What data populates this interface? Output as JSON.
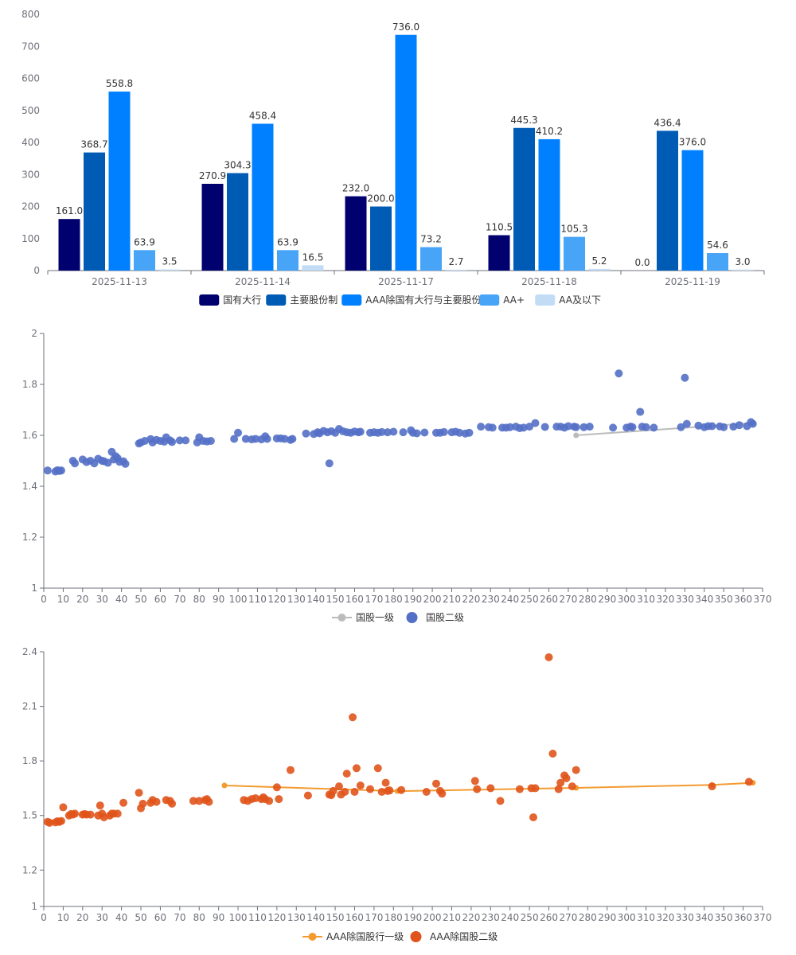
{
  "chart_data": [
    {
      "type": "bar",
      "categories": [
        "2025-11-13",
        "2025-11-14",
        "2025-11-17",
        "2025-11-18",
        "2025-11-19"
      ],
      "ylim": [
        0,
        800
      ],
      "yticks": [
        "0",
        "100",
        "200",
        "300",
        "400",
        "500",
        "600",
        "700",
        "800"
      ],
      "legend_position": "bottom-center",
      "series": [
        {
          "name": "国有大行",
          "color": "#00006e",
          "values": [
            161.0,
            270.9,
            232.0,
            110.5,
            0.0
          ],
          "labels": [
            "161.0",
            "270.9",
            "232.0",
            "110.5",
            "0.0"
          ]
        },
        {
          "name": "主要股份制",
          "color": "#005bb5",
          "values": [
            368.7,
            304.3,
            200.0,
            445.3,
            436.4
          ],
          "labels": [
            "368.7",
            "304.3",
            "200.0",
            "445.3",
            "436.4"
          ]
        },
        {
          "name": "AAA除国有大行与主要股份制",
          "color": "#0080ff",
          "values": [
            558.8,
            458.4,
            736.0,
            410.2,
            376.0
          ],
          "labels": [
            "558.8",
            "458.4",
            "736.0",
            "410.2",
            "376.0"
          ]
        },
        {
          "name": "AA+",
          "color": "#48a4f7",
          "values": [
            63.9,
            63.9,
            73.2,
            105.3,
            54.6
          ],
          "labels": [
            "63.9",
            "63.9",
            "73.2",
            "105.3",
            "54.6"
          ]
        },
        {
          "name": "AA及以下",
          "color": "#c3dcf5",
          "values": [
            3.5,
            16.5,
            2.7,
            5.2,
            3.0
          ],
          "labels": [
            "3.5",
            "16.5",
            "2.7",
            "5.2",
            "3.0"
          ]
        }
      ]
    },
    {
      "type": "scatter",
      "xlim": [
        0,
        370
      ],
      "ylim": [
        1,
        2
      ],
      "xticks": [
        "0",
        "10",
        "20",
        "30",
        "40",
        "50",
        "60",
        "70",
        "80",
        "90",
        "100",
        "110",
        "120",
        "130",
        "140",
        "150",
        "160",
        "170",
        "180",
        "190",
        "200",
        "210",
        "220",
        "230",
        "240",
        "250",
        "260",
        "270",
        "280",
        "290",
        "300",
        "310",
        "320",
        "330",
        "340",
        "350",
        "360",
        "370"
      ],
      "yticks": [
        "1",
        "1.2",
        "1.4",
        "1.6",
        "1.8",
        "2"
      ],
      "legend_position": "bottom-center",
      "series": [
        {
          "name": "国股一级",
          "kind": "line",
          "color": "#bbbbbb",
          "points": [
            [
              274,
              1.6
            ],
            [
              365,
              1.648
            ]
          ]
        },
        {
          "name": "国股二级",
          "kind": "scatter",
          "color": "#5470c6",
          "points": [
            [
              2,
              1.462
            ],
            [
              6,
              1.458
            ],
            [
              7,
              1.463
            ],
            [
              8,
              1.46
            ],
            [
              9,
              1.462
            ],
            [
              15,
              1.5
            ],
            [
              16,
              1.49
            ],
            [
              20,
              1.505
            ],
            [
              22,
              1.495
            ],
            [
              24,
              1.5
            ],
            [
              26,
              1.49
            ],
            [
              28,
              1.508
            ],
            [
              30,
              1.5
            ],
            [
              31,
              1.498
            ],
            [
              33,
              1.492
            ],
            [
              35,
              1.535
            ],
            [
              36,
              1.505
            ],
            [
              37,
              1.518
            ],
            [
              38,
              1.51
            ],
            [
              39,
              1.496
            ],
            [
              41,
              1.498
            ],
            [
              42,
              1.488
            ],
            [
              49,
              1.568
            ],
            [
              50,
              1.572
            ],
            [
              52,
              1.578
            ],
            [
              55,
              1.585
            ],
            [
              56,
              1.572
            ],
            [
              58,
              1.582
            ],
            [
              60,
              1.578
            ],
            [
              62,
              1.575
            ],
            [
              63,
              1.592
            ],
            [
              65,
              1.58
            ],
            [
              66,
              1.574
            ],
            [
              70,
              1.58
            ],
            [
              73,
              1.58
            ],
            [
              79,
              1.572
            ],
            [
              80,
              1.592
            ],
            [
              82,
              1.578
            ],
            [
              84,
              1.576
            ],
            [
              86,
              1.578
            ],
            [
              98,
              1.586
            ],
            [
              100,
              1.61
            ],
            [
              104,
              1.586
            ],
            [
              107,
              1.584
            ],
            [
              109,
              1.586
            ],
            [
              112,
              1.584
            ],
            [
              114,
              1.596
            ],
            [
              115,
              1.586
            ],
            [
              120,
              1.588
            ],
            [
              122,
              1.588
            ],
            [
              124,
              1.586
            ],
            [
              127,
              1.582
            ],
            [
              128,
              1.586
            ],
            [
              135,
              1.607
            ],
            [
              139,
              1.605
            ],
            [
              141,
              1.612
            ],
            [
              142,
              1.608
            ],
            [
              144,
              1.617
            ],
            [
              146,
              1.612
            ],
            [
              147,
              1.49
            ],
            [
              148,
              1.616
            ],
            [
              150,
              1.61
            ],
            [
              152,
              1.625
            ],
            [
              154,
              1.616
            ],
            [
              156,
              1.612
            ],
            [
              158,
              1.61
            ],
            [
              160,
              1.615
            ],
            [
              162,
              1.612
            ],
            [
              163,
              1.614
            ],
            [
              168,
              1.61
            ],
            [
              170,
              1.612
            ],
            [
              172,
              1.61
            ],
            [
              174,
              1.613
            ],
            [
              177,
              1.612
            ],
            [
              180,
              1.614
            ],
            [
              185,
              1.612
            ],
            [
              189,
              1.62
            ],
            [
              190,
              1.61
            ],
            [
              192,
              1.608
            ],
            [
              196,
              1.611
            ],
            [
              202,
              1.61
            ],
            [
              204,
              1.61
            ],
            [
              206,
              1.613
            ],
            [
              210,
              1.612
            ],
            [
              212,
              1.614
            ],
            [
              214,
              1.61
            ],
            [
              217,
              1.607
            ],
            [
              219,
              1.61
            ],
            [
              225,
              1.634
            ],
            [
              229,
              1.632
            ],
            [
              231,
              1.63
            ],
            [
              236,
              1.63
            ],
            [
              238,
              1.63
            ],
            [
              240,
              1.632
            ],
            [
              243,
              1.634
            ],
            [
              245,
              1.628
            ],
            [
              247,
              1.63
            ],
            [
              250,
              1.634
            ],
            [
              253,
              1.648
            ],
            [
              258,
              1.633
            ],
            [
              264,
              1.634
            ],
            [
              266,
              1.634
            ],
            [
              268,
              1.63
            ],
            [
              270,
              1.636
            ],
            [
              273,
              1.634
            ],
            [
              274,
              1.632
            ],
            [
              278,
              1.632
            ],
            [
              281,
              1.634
            ],
            [
              293,
              1.63
            ],
            [
              296,
              1.843
            ],
            [
              300,
              1.63
            ],
            [
              302,
              1.634
            ],
            [
              303,
              1.632
            ],
            [
              307,
              1.692
            ],
            [
              308,
              1.634
            ],
            [
              310,
              1.632
            ],
            [
              314,
              1.63
            ],
            [
              328,
              1.632
            ],
            [
              330,
              1.826
            ],
            [
              331,
              1.645
            ],
            [
              337,
              1.638
            ],
            [
              340,
              1.632
            ],
            [
              342,
              1.636
            ],
            [
              344,
              1.636
            ],
            [
              348,
              1.635
            ],
            [
              350,
              1.632
            ],
            [
              355,
              1.634
            ],
            [
              358,
              1.64
            ],
            [
              362,
              1.636
            ],
            [
              364,
              1.652
            ],
            [
              365,
              1.645
            ]
          ]
        }
      ]
    },
    {
      "type": "scatter",
      "xlim": [
        0,
        370
      ],
      "ylim": [
        1,
        2.4
      ],
      "xticks": [
        "0",
        "10",
        "20",
        "30",
        "40",
        "50",
        "60",
        "70",
        "80",
        "90",
        "100",
        "110",
        "120",
        "130",
        "140",
        "150",
        "160",
        "170",
        "180",
        "190",
        "200",
        "210",
        "220",
        "230",
        "240",
        "250",
        "260",
        "270",
        "280",
        "290",
        "300",
        "310",
        "320",
        "330",
        "340",
        "350",
        "360",
        "370"
      ],
      "yticks": [
        "1",
        "1.2",
        "1.5",
        "1.8",
        "2.1",
        "2.4"
      ],
      "legend_position": "bottom-center",
      "series": [
        {
          "name": "AAA除国股行一级",
          "kind": "line",
          "color": "#f39b30",
          "points": [
            [
              93,
              1.665
            ],
            [
              182,
              1.634
            ],
            [
              274,
              1.652
            ],
            [
              344,
              1.668
            ],
            [
              365,
              1.68
            ]
          ]
        },
        {
          "name": "AAA除国股二级",
          "kind": "scatter",
          "color": "#e0541b",
          "points": [
            [
              2,
              1.465
            ],
            [
              3,
              1.46
            ],
            [
              6,
              1.462
            ],
            [
              7,
              1.468
            ],
            [
              8,
              1.465
            ],
            [
              9,
              1.47
            ],
            [
              10,
              1.545
            ],
            [
              13,
              1.5
            ],
            [
              14,
              1.508
            ],
            [
              15,
              1.505
            ],
            [
              16,
              1.51
            ],
            [
              20,
              1.505
            ],
            [
              21,
              1.508
            ],
            [
              22,
              1.505
            ],
            [
              24,
              1.505
            ],
            [
              28,
              1.5
            ],
            [
              29,
              1.555
            ],
            [
              30,
              1.51
            ],
            [
              31,
              1.49
            ],
            [
              34,
              1.5
            ],
            [
              35,
              1.51
            ],
            [
              36,
              1.51
            ],
            [
              38,
              1.51
            ],
            [
              41,
              1.57
            ],
            [
              49,
              1.625
            ],
            [
              50,
              1.54
            ],
            [
              51,
              1.565
            ],
            [
              55,
              1.57
            ],
            [
              56,
              1.585
            ],
            [
              58,
              1.575
            ],
            [
              63,
              1.585
            ],
            [
              65,
              1.58
            ],
            [
              66,
              1.565
            ],
            [
              77,
              1.58
            ],
            [
              80,
              1.58
            ],
            [
              83,
              1.585
            ],
            [
              84,
              1.59
            ],
            [
              85,
              1.575
            ],
            [
              103,
              1.585
            ],
            [
              105,
              1.58
            ],
            [
              107,
              1.59
            ],
            [
              109,
              1.595
            ],
            [
              112,
              1.59
            ],
            [
              113,
              1.6
            ],
            [
              114,
              1.59
            ],
            [
              116,
              1.58
            ],
            [
              120,
              1.655
            ],
            [
              121,
              1.59
            ],
            [
              127,
              1.75
            ],
            [
              136,
              1.61
            ],
            [
              147,
              1.615
            ],
            [
              148,
              1.612
            ],
            [
              149,
              1.635
            ],
            [
              152,
              1.66
            ],
            [
              153,
              1.615
            ],
            [
              155,
              1.63
            ],
            [
              156,
              1.73
            ],
            [
              159,
              2.04
            ],
            [
              160,
              1.63
            ],
            [
              161,
              1.76
            ],
            [
              163,
              1.665
            ],
            [
              168,
              1.645
            ],
            [
              172,
              1.76
            ],
            [
              174,
              1.63
            ],
            [
              176,
              1.68
            ],
            [
              177,
              1.635
            ],
            [
              178,
              1.638
            ],
            [
              184,
              1.64
            ],
            [
              197,
              1.63
            ],
            [
              202,
              1.675
            ],
            [
              204,
              1.635
            ],
            [
              205,
              1.62
            ],
            [
              222,
              1.69
            ],
            [
              223,
              1.645
            ],
            [
              230,
              1.65
            ],
            [
              235,
              1.58
            ],
            [
              245,
              1.645
            ],
            [
              251,
              1.65
            ],
            [
              252,
              1.49
            ],
            [
              253,
              1.65
            ],
            [
              260,
              2.37
            ],
            [
              262,
              1.84
            ],
            [
              265,
              1.645
            ],
            [
              266,
              1.68
            ],
            [
              268,
              1.72
            ],
            [
              269,
              1.705
            ],
            [
              272,
              1.66
            ],
            [
              274,
              1.75
            ],
            [
              344,
              1.66
            ],
            [
              363,
              1.685
            ]
          ]
        }
      ]
    }
  ]
}
